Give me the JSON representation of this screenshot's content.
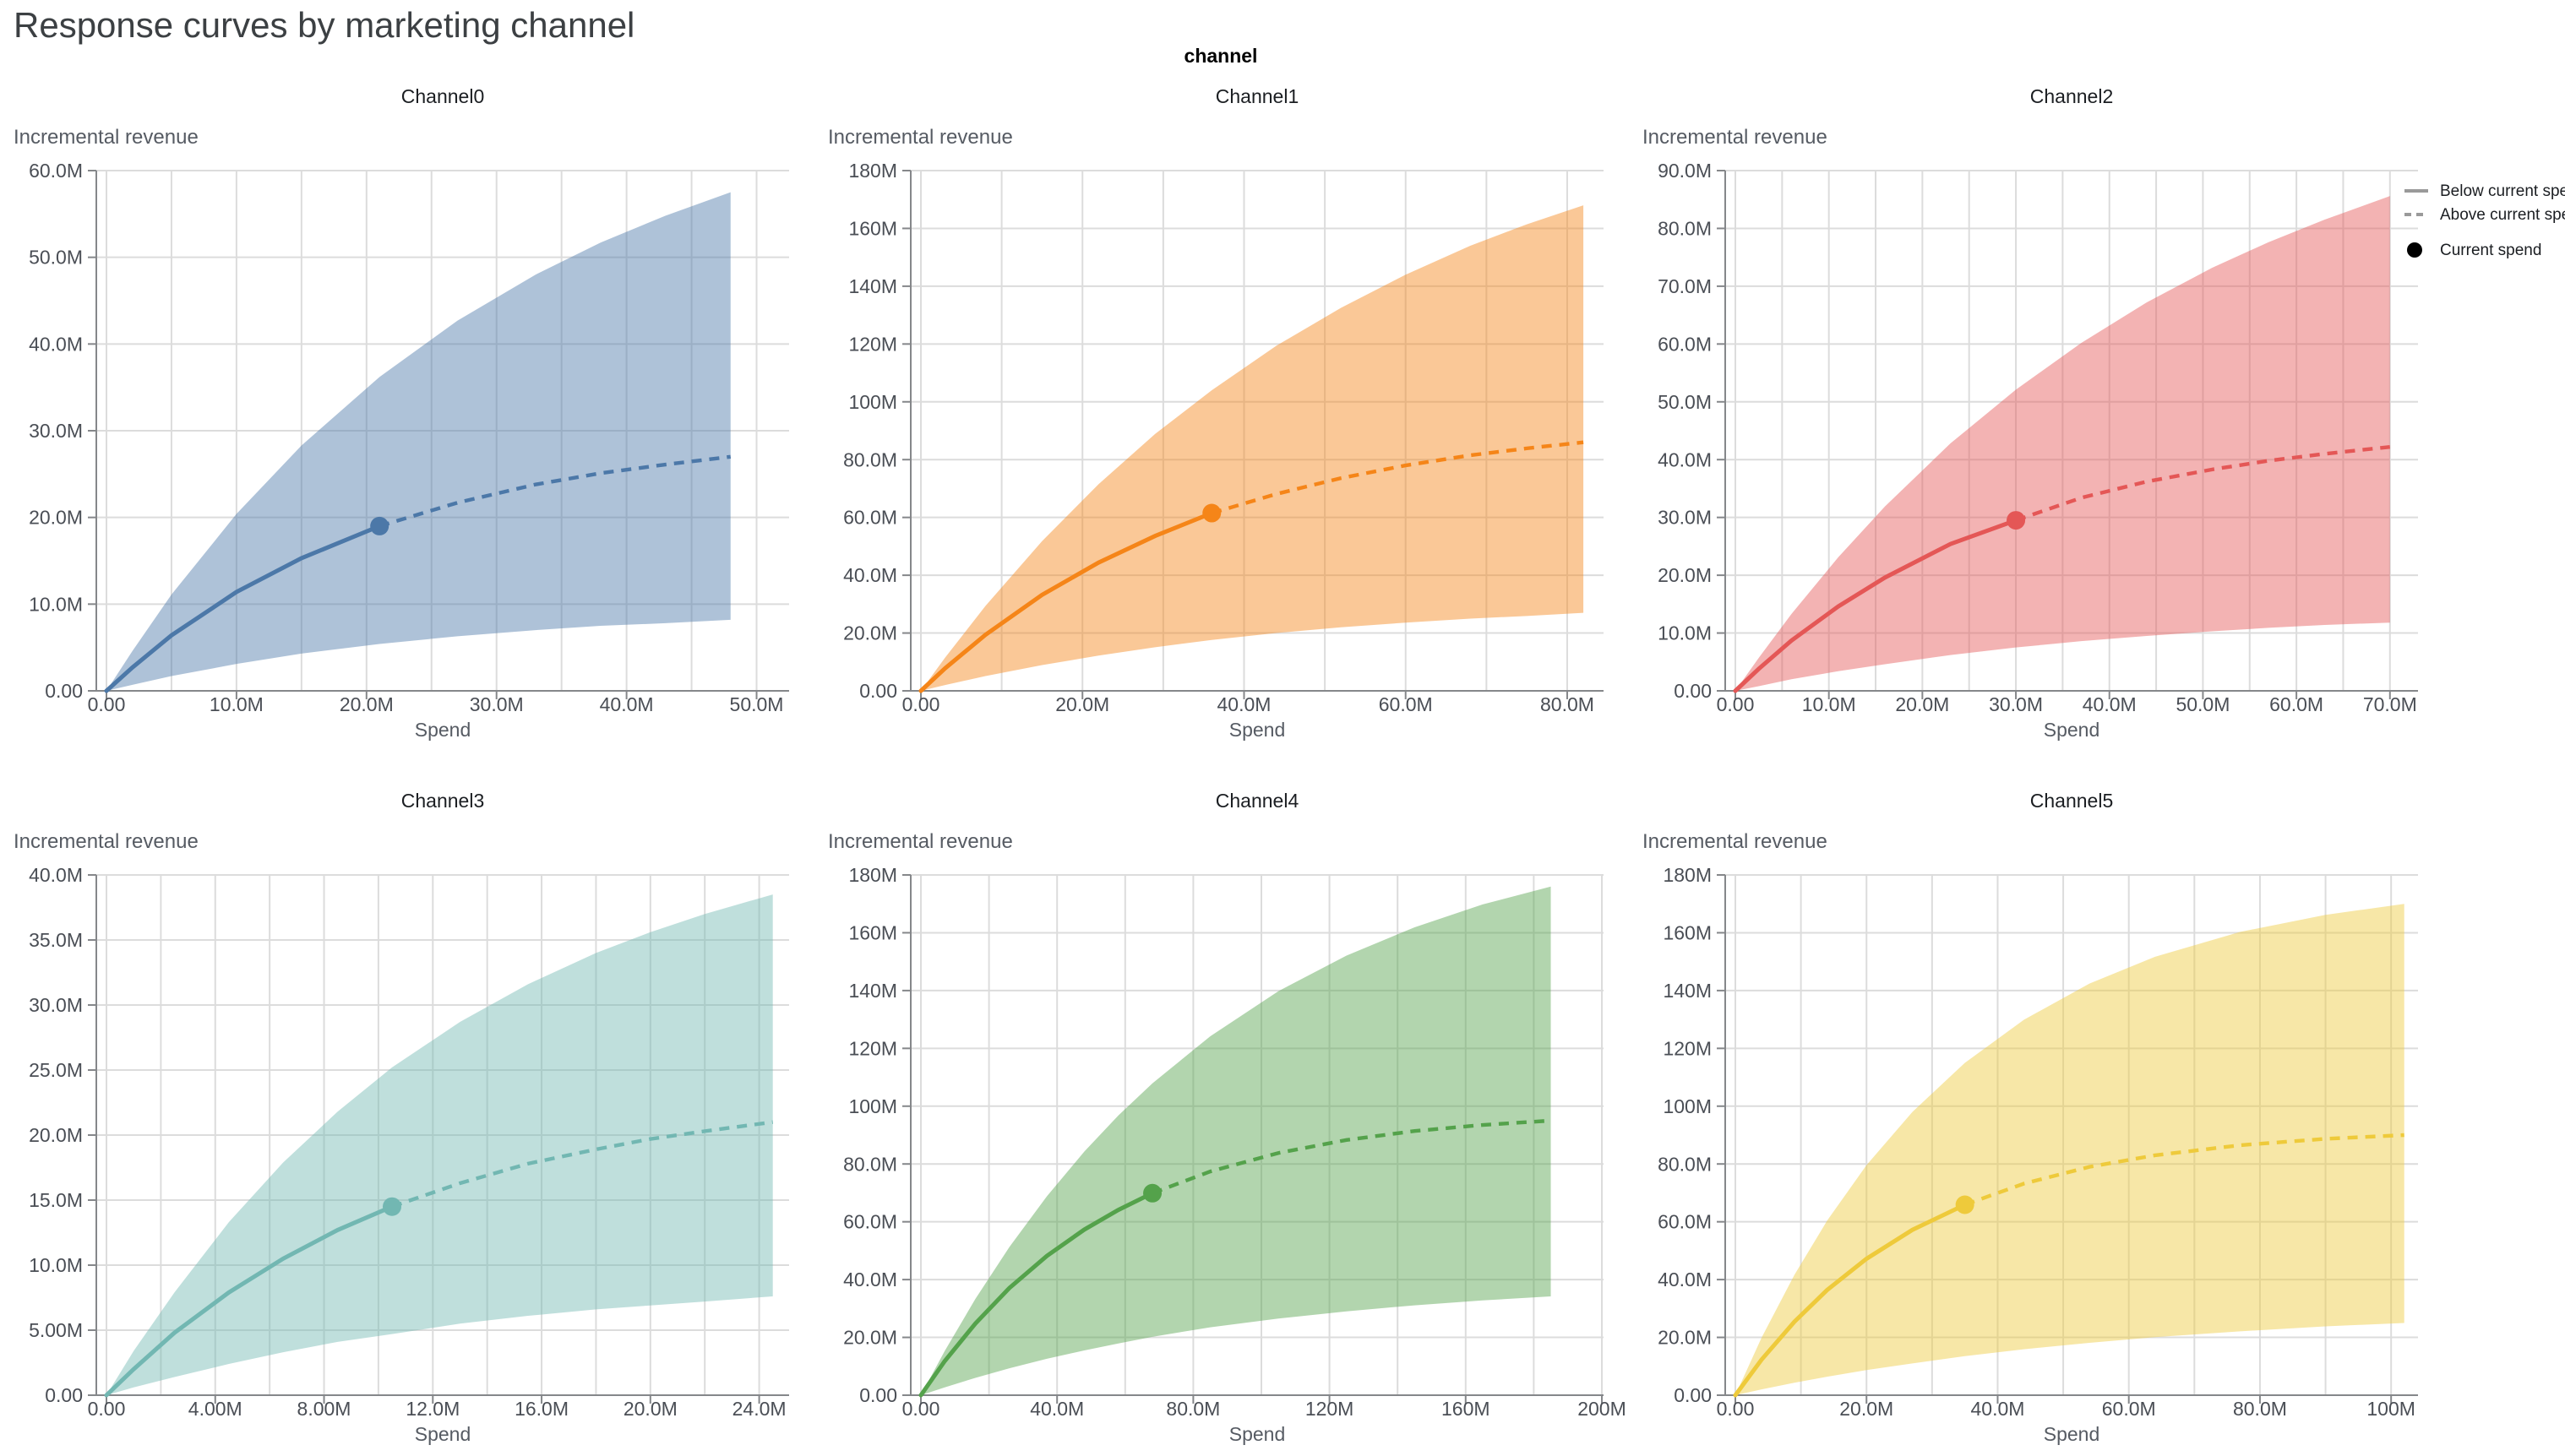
{
  "page": {
    "title": "Response curves by marketing channel"
  },
  "facet_header": {
    "title": "channel"
  },
  "legend": {
    "below_label": "Below current spend",
    "above_label": "Above current spend",
    "current_label": "Current spend",
    "line_color": "#9a9a9a",
    "dot_color": "#000000"
  },
  "chart_data": {
    "type": "line",
    "title": "Response curves by marketing channel",
    "facet_title": "channel",
    "x_label": "Spend",
    "y_label": "Incremental revenue",
    "units": "millions",
    "legend": [
      "Below current spend",
      "Above current spend",
      "Current spend"
    ],
    "band_opacity": 0.45,
    "channels": [
      {
        "name": "Channel0",
        "color": "#4c78a8",
        "x_max_render": 52.5,
        "x_ticks": [
          [
            0,
            "0.00"
          ],
          [
            10,
            "10.0M"
          ],
          [
            20,
            "20.0M"
          ],
          [
            30,
            "30.0M"
          ],
          [
            40,
            "40.0M"
          ],
          [
            50,
            "50.0M"
          ]
        ],
        "y_ticks": [
          [
            0,
            "0.00"
          ],
          [
            10,
            "10.0M"
          ],
          [
            20,
            "20.0M"
          ],
          [
            30,
            "30.0M"
          ],
          [
            40,
            "40.0M"
          ],
          [
            50,
            "50.0M"
          ],
          [
            60,
            "60.0M"
          ]
        ],
        "current_spend": {
          "x": 21,
          "y": 19.0
        },
        "curve": {
          "x": [
            0,
            2,
            5,
            10,
            15,
            21,
            27,
            33,
            38,
            43,
            48
          ],
          "mean": [
            0,
            2.7,
            6.4,
            11.4,
            15.3,
            19.0,
            21.7,
            23.8,
            25.1,
            26.1,
            27.0
          ],
          "lower": [
            0,
            0.7,
            1.7,
            3.1,
            4.3,
            5.4,
            6.3,
            7.0,
            7.5,
            7.8,
            8.2
          ],
          "upper": [
            0,
            4.6,
            11.1,
            20.4,
            28.3,
            36.2,
            42.7,
            48.0,
            51.7,
            54.8,
            57.5
          ]
        }
      },
      {
        "name": "Channel1",
        "color": "#f58518",
        "x_max_render": 84.5,
        "x_ticks": [
          [
            0,
            "0.00"
          ],
          [
            20,
            "20.0M"
          ],
          [
            40,
            "40.0M"
          ],
          [
            60,
            "60.0M"
          ],
          [
            80,
            "80.0M"
          ]
        ],
        "y_ticks": [
          [
            0,
            "0.00"
          ],
          [
            20,
            "20.0M"
          ],
          [
            40,
            "40.0M"
          ],
          [
            60,
            "60.0M"
          ],
          [
            80,
            "80.0M"
          ],
          [
            100,
            "100M"
          ],
          [
            120,
            "120M"
          ],
          [
            140,
            "140M"
          ],
          [
            160,
            "160M"
          ],
          [
            180,
            "180M"
          ]
        ],
        "current_spend": {
          "x": 36,
          "y": 61.5
        },
        "curve": {
          "x": [
            0,
            3,
            8,
            15,
            22,
            29,
            36,
            44,
            52,
            60,
            68,
            75,
            82
          ],
          "mean": [
            0,
            7.8,
            19.4,
            33.2,
            44.4,
            53.6,
            61.5,
            68.1,
            73.6,
            78.0,
            81.5,
            83.9,
            86.0
          ],
          "lower": [
            0,
            2.0,
            5.1,
            8.9,
            12.2,
            15.1,
            17.6,
            20.0,
            22.0,
            23.6,
            25.0,
            25.9,
            27.0
          ],
          "upper": [
            0,
            11.5,
            29.4,
            51.8,
            71.5,
            88.9,
            104.0,
            119.4,
            132.5,
            144.0,
            154.0,
            161.4,
            168.0
          ]
        }
      },
      {
        "name": "Channel2",
        "color": "#e45756",
        "x_max_render": 73,
        "x_ticks": [
          [
            0,
            "0.00"
          ],
          [
            10,
            "10.0M"
          ],
          [
            20,
            "20.0M"
          ],
          [
            30,
            "30.0M"
          ],
          [
            40,
            "40.0M"
          ],
          [
            50,
            "50.0M"
          ],
          [
            60,
            "60.0M"
          ],
          [
            70,
            "70.0M"
          ]
        ],
        "y_ticks": [
          [
            0,
            "0.00"
          ],
          [
            10,
            "10.0M"
          ],
          [
            20,
            "20.0M"
          ],
          [
            30,
            "30.0M"
          ],
          [
            40,
            "40.0M"
          ],
          [
            50,
            "50.0M"
          ],
          [
            60,
            "60.0M"
          ],
          [
            70,
            "70.0M"
          ],
          [
            80,
            "80.0M"
          ],
          [
            90,
            "90.0M"
          ]
        ],
        "current_spend": {
          "x": 30,
          "y": 29.5
        },
        "curve": {
          "x": [
            0,
            2.5,
            6,
            11,
            16,
            23,
            30,
            37,
            44,
            51,
            57,
            63,
            70
          ],
          "mean": [
            0,
            3.8,
            8.7,
            14.6,
            19.6,
            25.4,
            29.5,
            33.4,
            36.2,
            38.3,
            39.8,
            41.0,
            42.2
          ],
          "lower": [
            0,
            0.8,
            2.0,
            3.4,
            4.6,
            6.2,
            7.5,
            8.6,
            9.5,
            10.3,
            10.9,
            11.4,
            11.8
          ],
          "upper": [
            0,
            5.7,
            13.3,
            23.1,
            31.9,
            42.8,
            52.1,
            60.2,
            67.2,
            73.2,
            77.6,
            81.5,
            85.6
          ]
        }
      },
      {
        "name": "Channel3",
        "color": "#72b7b2",
        "x_max_render": 25.1,
        "x_ticks": [
          [
            0,
            "0.00"
          ],
          [
            4,
            "4.00M"
          ],
          [
            8,
            "8.00M"
          ],
          [
            12,
            "12.0M"
          ],
          [
            16,
            "16.0M"
          ],
          [
            20,
            "20.0M"
          ],
          [
            24,
            "24.0M"
          ]
        ],
        "y_ticks": [
          [
            0,
            "0.00"
          ],
          [
            5,
            "5.00M"
          ],
          [
            10,
            "10.0M"
          ],
          [
            15,
            "15.0M"
          ],
          [
            20,
            "20.0M"
          ],
          [
            25,
            "25.0M"
          ],
          [
            30,
            "30.0M"
          ],
          [
            35,
            "35.0M"
          ],
          [
            40,
            "40.0M"
          ]
        ],
        "current_spend": {
          "x": 10.5,
          "y": 14.5
        },
        "curve": {
          "x": [
            0,
            1,
            2.5,
            4.5,
            6.5,
            8.5,
            10.5,
            13,
            15.5,
            18,
            20,
            22,
            24.5
          ],
          "mean": [
            0,
            2.0,
            4.8,
            7.9,
            10.5,
            12.7,
            14.5,
            16.3,
            17.8,
            18.9,
            19.7,
            20.3,
            21.0
          ],
          "lower": [
            0,
            0.6,
            1.4,
            2.4,
            3.3,
            4.1,
            4.7,
            5.5,
            6.1,
            6.6,
            6.9,
            7.2,
            7.6
          ],
          "upper": [
            0,
            3.4,
            7.9,
            13.3,
            17.9,
            21.8,
            25.2,
            28.7,
            31.6,
            34.0,
            35.6,
            37.0,
            38.5
          ]
        }
      },
      {
        "name": "Channel4",
        "color": "#54a24b",
        "x_max_render": 200.5,
        "x_ticks": [
          [
            0,
            "0.00"
          ],
          [
            40,
            "40.0M"
          ],
          [
            80,
            "80.0M"
          ],
          [
            120,
            "120M"
          ],
          [
            160,
            "160M"
          ],
          [
            200,
            "200M"
          ]
        ],
        "y_ticks": [
          [
            0,
            "0.00"
          ],
          [
            20,
            "20.0M"
          ],
          [
            40,
            "40.0M"
          ],
          [
            60,
            "60.0M"
          ],
          [
            80,
            "80.0M"
          ],
          [
            100,
            "100M"
          ],
          [
            120,
            "120M"
          ],
          [
            140,
            "140M"
          ],
          [
            160,
            "160M"
          ],
          [
            180,
            "180M"
          ]
        ],
        "current_spend": {
          "x": 68,
          "y": 69.9
        },
        "curve": {
          "x": [
            0,
            7,
            16,
            26,
            37,
            48,
            58,
            68,
            85,
            105,
            125,
            145,
            165,
            185
          ],
          "mean": [
            0,
            11.8,
            24.8,
            37.1,
            48.2,
            57.3,
            64.1,
            69.9,
            77.4,
            83.8,
            88.3,
            91.4,
            93.5,
            95.0
          ],
          "lower": [
            0,
            2.7,
            6.0,
            9.3,
            12.6,
            15.5,
            17.9,
            20.2,
            23.5,
            26.5,
            29.0,
            31.1,
            32.8,
            34.2
          ],
          "upper": [
            0,
            15.3,
            33.3,
            51.3,
            68.8,
            84.3,
            96.8,
            107.9,
            124.2,
            139.8,
            152.1,
            161.9,
            169.8,
            176.0
          ]
        }
      },
      {
        "name": "Channel5",
        "color": "#eeca3b",
        "x_max_render": 104.1,
        "x_ticks": [
          [
            0,
            "0.00"
          ],
          [
            20,
            "20.0M"
          ],
          [
            40,
            "40.0M"
          ],
          [
            60,
            "60.0M"
          ],
          [
            80,
            "80.0M"
          ],
          [
            100,
            "100M"
          ]
        ],
        "y_ticks": [
          [
            0,
            "0.00"
          ],
          [
            20,
            "20.0M"
          ],
          [
            40,
            "40.0M"
          ],
          [
            60,
            "60.0M"
          ],
          [
            80,
            "80.0M"
          ],
          [
            100,
            "100M"
          ],
          [
            120,
            "120M"
          ],
          [
            140,
            "140M"
          ],
          [
            160,
            "160M"
          ],
          [
            180,
            "180M"
          ]
        ],
        "current_spend": {
          "x": 35,
          "y": 65.9
        },
        "curve": {
          "x": [
            0,
            4,
            9,
            14,
            20,
            27,
            35,
            44,
            54,
            64,
            77,
            90,
            102
          ],
          "mean": [
            0,
            12.3,
            25.4,
            36.4,
            47.2,
            57.2,
            65.9,
            73.2,
            79.0,
            83.0,
            86.5,
            88.7,
            90.0
          ],
          "lower": [
            0,
            2.0,
            4.3,
            6.4,
            8.7,
            11.0,
            13.5,
            15.9,
            18.1,
            20.1,
            22.1,
            23.8,
            25.0
          ],
          "upper": [
            0,
            19.9,
            41.6,
            60.4,
            79.6,
            98.0,
            115.0,
            129.9,
            142.4,
            151.7,
            160.3,
            166.2,
            170.0
          ]
        }
      }
    ]
  }
}
